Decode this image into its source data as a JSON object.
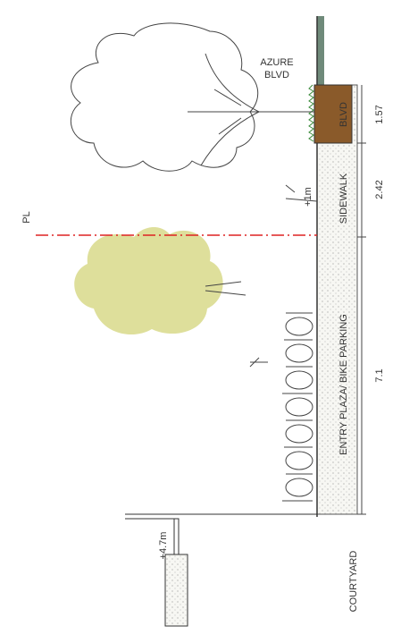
{
  "street_label": [
    "AZURE",
    "BLVD"
  ],
  "property_line": "PL",
  "levels": {
    "sidewalk": "+1m",
    "building": "+4.7m"
  },
  "zones": {
    "boulevard": "BLVD",
    "sidewalk": "SIDEWALK",
    "entry_plaza": "ENTRY PLAZA/ BIKE PARKING",
    "courtyard": "COURTYARD"
  },
  "dimensions": {
    "boulevard": "1.57",
    "sidewalk": "2.42",
    "entry_plaza": "7.1"
  }
}
